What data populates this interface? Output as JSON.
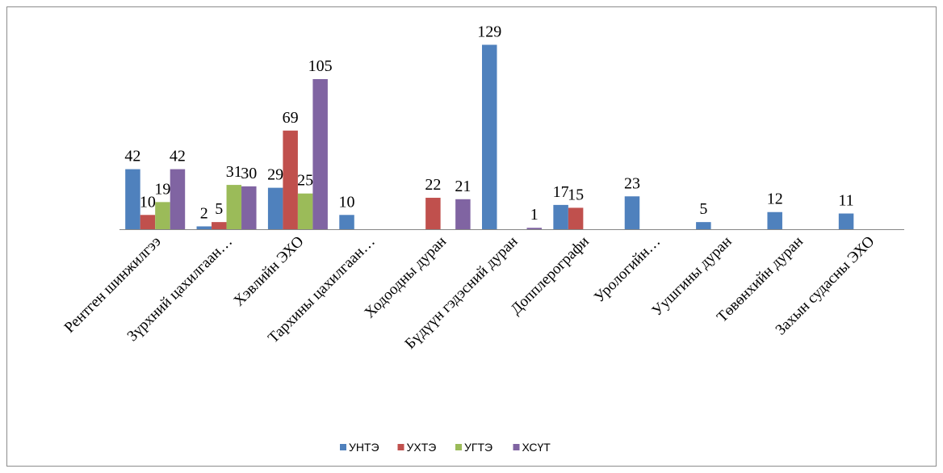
{
  "chart_data": {
    "type": "bar",
    "categories": [
      "Рентген шинжилгээ",
      "Зүрхний цахилгаан…",
      "Хэвлийн ЭХО",
      "Тархины цахилгаан…",
      "Ходоодны дуран",
      "Бүдүүн гэдэсний дуран",
      "Допплерографи",
      "Урологийн…",
      "Уушгины дуран",
      "Төвөнхийн дуран",
      "Захын судасны ЭХО"
    ],
    "series": [
      {
        "name": "УНТЭ",
        "color": "#4f81bd",
        "values": [
          42,
          2,
          29,
          10,
          null,
          129,
          17,
          23,
          5,
          12,
          11
        ]
      },
      {
        "name": "УХТЭ",
        "color": "#c0504d",
        "values": [
          10,
          5,
          69,
          null,
          22,
          null,
          15,
          null,
          null,
          null,
          null
        ]
      },
      {
        "name": "УГТЭ",
        "color": "#9bbb59",
        "values": [
          19,
          31,
          25,
          null,
          null,
          null,
          null,
          null,
          null,
          null,
          null
        ]
      },
      {
        "name": "ХСҮТ",
        "color": "#8064a2",
        "values": [
          42,
          30,
          105,
          null,
          21,
          1,
          null,
          null,
          null,
          null,
          null
        ]
      }
    ],
    "ylim": [
      0,
      140
    ],
    "legend": "bottom"
  }
}
